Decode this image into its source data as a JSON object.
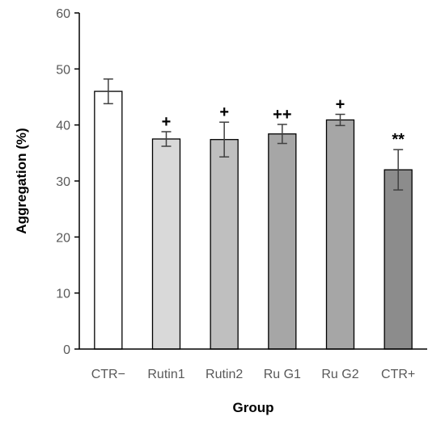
{
  "chart_data": {
    "type": "bar",
    "categories": [
      "CTR−",
      "Rutin1",
      "Rutin2",
      "Ru G1",
      "Ru G2",
      "CTR+"
    ],
    "values": [
      46.0,
      37.5,
      37.4,
      38.4,
      40.9,
      32.0
    ],
    "errors": [
      2.2,
      1.3,
      3.1,
      1.7,
      1.0,
      3.6
    ],
    "annotations": [
      "",
      "+",
      "+",
      "++",
      "+",
      "**"
    ],
    "bar_colors": [
      "#ffffff",
      "#d9d9d9",
      "#bfbfbf",
      "#a6a6a6",
      "#a6a6a6",
      "#8c8c8c"
    ],
    "xlabel": "Group",
    "ylabel": "Aggregation (%)",
    "ylim": [
      0,
      60
    ],
    "yticks": [
      0,
      10,
      20,
      30,
      40,
      50,
      60
    ],
    "grid": false
  }
}
